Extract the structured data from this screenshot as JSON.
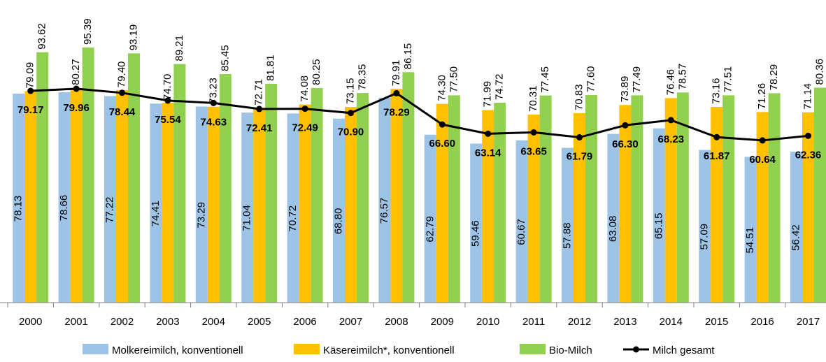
{
  "chart_data": {
    "type": "bar-line",
    "categories": [
      "2000",
      "2001",
      "2002",
      "2003",
      "2004",
      "2005",
      "2006",
      "2007",
      "2008",
      "2009",
      "2010",
      "2011",
      "2012",
      "2013",
      "2014",
      "2015",
      "2016",
      "2017"
    ],
    "series": [
      {
        "name": "Molkereimilch, konventionell",
        "type": "bar",
        "color": "#9dc3e6",
        "values": [
          78.13,
          78.66,
          77.22,
          74.41,
          73.29,
          71.04,
          70.72,
          68.8,
          76.57,
          62.79,
          59.46,
          60.67,
          57.88,
          63.08,
          65.15,
          57.09,
          54.51,
          56.42
        ],
        "value_labels": [
          "78.13",
          "78.66",
          "77.22",
          "74.41",
          "73.29",
          "71.04",
          "70.72",
          "68.80",
          "76.57",
          "62.79",
          "59.46",
          "60.67",
          "57.88",
          "63.08",
          "65.15",
          "57.09",
          "54.51",
          "56.42"
        ]
      },
      {
        "name": "Käsereimilch*, konventionell",
        "type": "bar",
        "color": "#ffc000",
        "values": [
          79.09,
          80.27,
          79.4,
          74.7,
          73.23,
          72.71,
          74.08,
          73.15,
          79.91,
          74.3,
          71.99,
          70.31,
          70.83,
          73.89,
          76.46,
          73.16,
          71.26,
          71.14
        ],
        "value_labels": [
          "79.09",
          "80.27",
          "79.40",
          "74.70",
          "73.23",
          "72.71",
          "74.08",
          "73.15",
          "79.91",
          "74.30",
          "71.99",
          "70.31",
          "70.83",
          "73.89",
          "76.46",
          "73.16",
          "71.26",
          "71.14"
        ]
      },
      {
        "name": "Bio-Milch",
        "type": "bar",
        "color": "#92d050",
        "values": [
          93.62,
          95.39,
          93.19,
          89.21,
          85.45,
          81.81,
          80.25,
          78.35,
          86.15,
          77.5,
          74.72,
          77.45,
          77.6,
          77.49,
          78.57,
          77.51,
          78.29,
          80.36
        ],
        "value_labels": [
          "93.62",
          "95.39",
          "93.19",
          "89.21",
          "85.45",
          "81.81",
          "80.25",
          "78.35",
          "86.15",
          "77.50",
          "74.72",
          "77.45",
          "77.60",
          "77.49",
          "78.57",
          "77.51",
          "78.29",
          "80.36"
        ]
      },
      {
        "name": "Milch gesamt",
        "type": "line",
        "color": "#000000",
        "values": [
          79.17,
          79.96,
          78.44,
          75.54,
          74.63,
          72.41,
          72.49,
          70.9,
          78.29,
          66.6,
          63.14,
          63.65,
          61.79,
          66.3,
          68.23,
          61.87,
          60.64,
          62.36
        ],
        "value_labels": [
          "79.17",
          "79.96",
          "78.44",
          "75.54",
          "74.63",
          "72.41",
          "72.49",
          "70.90",
          "78.29",
          "66.60",
          "63.14",
          "63.65",
          "61.79",
          "66.30",
          "68.23",
          "61.87",
          "60.64",
          "62.36"
        ]
      }
    ],
    "ylim": [
      0,
      100
    ],
    "legend": "bottom"
  }
}
